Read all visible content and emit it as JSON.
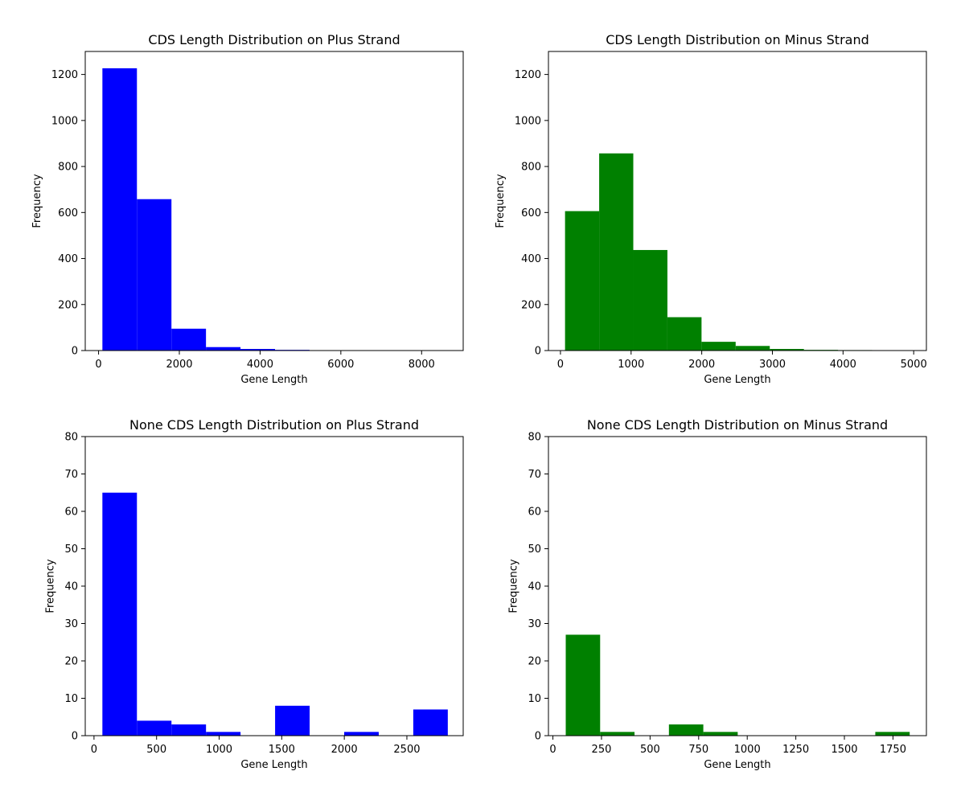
{
  "chart_data": [
    {
      "type": "bar",
      "title": "CDS Length Distribution on Plus Strand",
      "xlabel": "Gene Length",
      "ylabel": "Frequency",
      "color": "#0000ff",
      "xlim": [
        -330,
        9030
      ],
      "ylim": [
        0,
        1300
      ],
      "xticks": [
        0,
        2000,
        4000,
        6000,
        8000
      ],
      "yticks": [
        0,
        200,
        400,
        600,
        800,
        1000,
        1200
      ],
      "bins": [
        {
          "x0": 95,
          "x1": 950,
          "value": 1227
        },
        {
          "x0": 950,
          "x1": 1805,
          "value": 658
        },
        {
          "x0": 1805,
          "x1": 2660,
          "value": 95
        },
        {
          "x0": 2660,
          "x1": 3515,
          "value": 15
        },
        {
          "x0": 3515,
          "x1": 4370,
          "value": 7
        },
        {
          "x0": 4370,
          "x1": 5225,
          "value": 3
        },
        {
          "x0": 5225,
          "x1": 6080,
          "value": 1
        },
        {
          "x0": 6080,
          "x1": 6935,
          "value": 0
        },
        {
          "x0": 6935,
          "x1": 7790,
          "value": 0
        },
        {
          "x0": 7790,
          "x1": 8645,
          "value": 1
        }
      ]
    },
    {
      "type": "bar",
      "title": "CDS Length Distribution on Minus Strand",
      "xlabel": "Gene Length",
      "ylabel": "Frequency",
      "color": "#008000",
      "xlim": [
        -170,
        5180
      ],
      "ylim": [
        0,
        1300
      ],
      "xticks": [
        0,
        1000,
        2000,
        3000,
        4000,
        5000
      ],
      "yticks": [
        0,
        200,
        400,
        600,
        800,
        1000,
        1200
      ],
      "bins": [
        {
          "x0": 65,
          "x1": 548,
          "value": 606
        },
        {
          "x0": 548,
          "x1": 1031,
          "value": 857
        },
        {
          "x0": 1031,
          "x1": 1514,
          "value": 437
        },
        {
          "x0": 1514,
          "x1": 1997,
          "value": 145
        },
        {
          "x0": 1997,
          "x1": 2480,
          "value": 38
        },
        {
          "x0": 2480,
          "x1": 2963,
          "value": 20
        },
        {
          "x0": 2963,
          "x1": 3446,
          "value": 7
        },
        {
          "x0": 3446,
          "x1": 3929,
          "value": 3
        },
        {
          "x0": 3929,
          "x1": 4412,
          "value": 2
        },
        {
          "x0": 4412,
          "x1": 4895,
          "value": 1
        }
      ]
    },
    {
      "type": "bar",
      "title": "None CDS Length Distribution on Plus Strand",
      "xlabel": "Gene Length",
      "ylabel": "Frequency",
      "color": "#0000ff",
      "xlim": [
        -70,
        2950
      ],
      "ylim": [
        0,
        80
      ],
      "xticks": [
        0,
        500,
        1000,
        1500,
        2000,
        2500
      ],
      "yticks": [
        0,
        10,
        20,
        30,
        40,
        50,
        60,
        70,
        80
      ],
      "bins": [
        {
          "x0": 67,
          "x1": 343,
          "value": 65
        },
        {
          "x0": 343,
          "x1": 619,
          "value": 4
        },
        {
          "x0": 619,
          "x1": 895,
          "value": 3
        },
        {
          "x0": 895,
          "x1": 1171,
          "value": 1
        },
        {
          "x0": 1171,
          "x1": 1447,
          "value": 0
        },
        {
          "x0": 1447,
          "x1": 1723,
          "value": 8
        },
        {
          "x0": 1723,
          "x1": 1999,
          "value": 0
        },
        {
          "x0": 1999,
          "x1": 2275,
          "value": 1
        },
        {
          "x0": 2275,
          "x1": 2551,
          "value": 0
        },
        {
          "x0": 2551,
          "x1": 2827,
          "value": 7
        }
      ]
    },
    {
      "type": "bar",
      "title": "None CDS Length Distribution on Minus Strand",
      "xlabel": "Gene Length",
      "ylabel": "Frequency",
      "color": "#008000",
      "xlim": [
        -23,
        1922
      ],
      "ylim": [
        0,
        80
      ],
      "xticks": [
        0,
        250,
        500,
        750,
        1000,
        1250,
        1500,
        1750
      ],
      "yticks": [
        0,
        10,
        20,
        30,
        40,
        50,
        60,
        70,
        80
      ],
      "bins": [
        {
          "x0": 66,
          "x1": 243,
          "value": 27
        },
        {
          "x0": 243,
          "x1": 420,
          "value": 1
        },
        {
          "x0": 420,
          "x1": 597,
          "value": 0
        },
        {
          "x0": 597,
          "x1": 774,
          "value": 3
        },
        {
          "x0": 774,
          "x1": 951,
          "value": 1
        },
        {
          "x0": 951,
          "x1": 1128,
          "value": 0
        },
        {
          "x0": 1128,
          "x1": 1305,
          "value": 0
        },
        {
          "x0": 1305,
          "x1": 1482,
          "value": 0
        },
        {
          "x0": 1482,
          "x1": 1659,
          "value": 0
        },
        {
          "x0": 1659,
          "x1": 1836,
          "value": 1
        }
      ]
    }
  ]
}
